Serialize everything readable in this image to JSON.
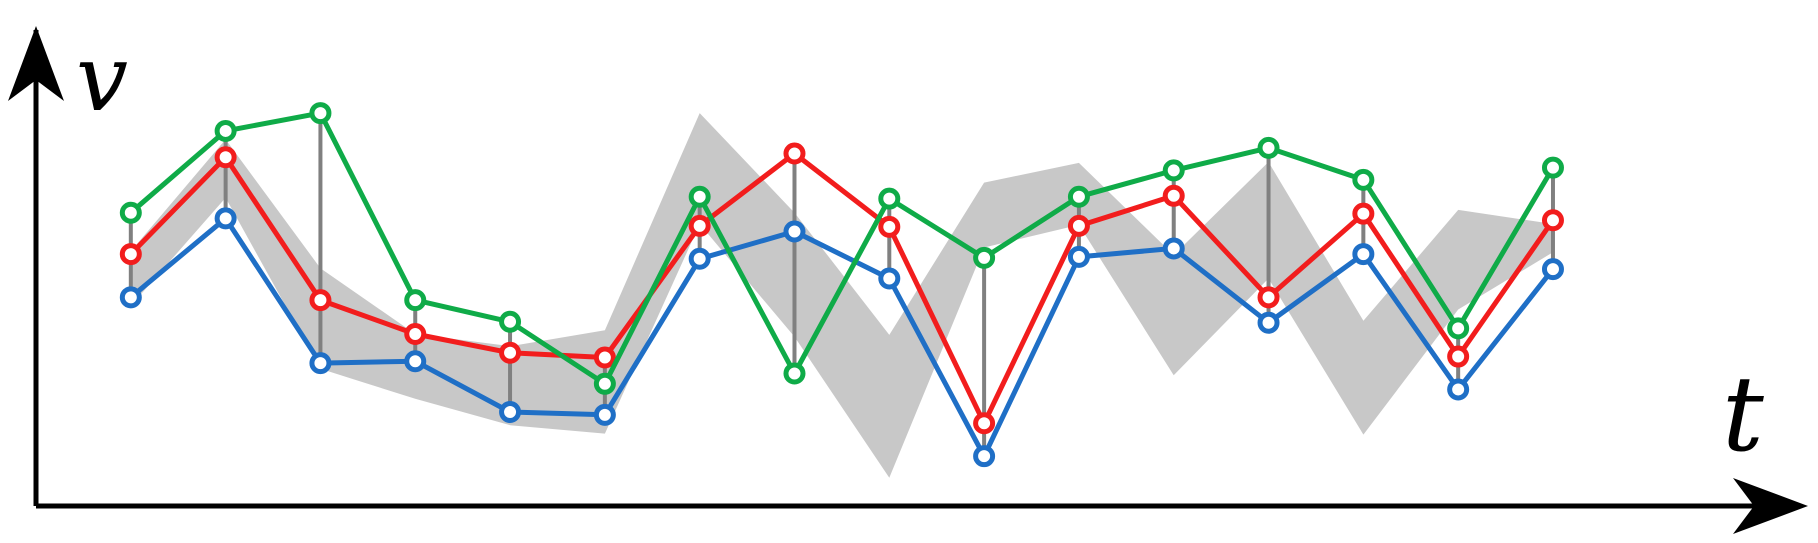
{
  "chart_data": {
    "type": "line",
    "title": "",
    "xlabel": "t",
    "ylabel": "v",
    "grid": false,
    "legend": "none",
    "x": [
      1,
      2,
      3,
      4,
      5,
      6,
      7,
      8,
      9,
      10,
      11,
      12,
      13,
      14,
      15,
      16
    ],
    "xlim": [
      0,
      18.5
    ],
    "ylim": [
      0,
      5
    ],
    "band": {
      "color": "#c8c8c8",
      "upper": [
        2.71,
        3.9,
        2.53,
        1.83,
        1.7,
        1.87,
        4.18,
        3.12,
        1.82,
        3.44,
        3.65,
        2.67,
        3.66,
        1.97,
        3.15,
        3.0
      ],
      "lower": [
        2.13,
        3.28,
        1.46,
        1.14,
        0.86,
        0.77,
        3.0,
        1.8,
        0.3,
        2.75,
        2.99,
        1.39,
        2.42,
        0.76,
        2.09,
        2.7
      ]
    },
    "series": [
      {
        "name": "",
        "color": "#1f6fc6",
        "values": [
          2.22,
          3.06,
          1.52,
          1.54,
          1.0,
          0.97,
          2.63,
          2.92,
          2.42,
          0.53,
          2.65,
          2.74,
          1.95,
          2.68,
          1.24,
          2.52
        ]
      },
      {
        "name": "",
        "color": "#f21d1d",
        "values": [
          2.68,
          3.71,
          2.19,
          1.83,
          1.63,
          1.58,
          2.98,
          3.75,
          2.97,
          0.88,
          2.98,
          3.3,
          2.22,
          3.11,
          1.59,
          3.04
        ]
      },
      {
        "name": "",
        "color": "#0fab48",
        "values": [
          3.12,
          3.99,
          4.18,
          2.19,
          1.96,
          1.3,
          3.29,
          1.41,
          3.27,
          2.64,
          3.29,
          3.57,
          3.81,
          3.47,
          1.89,
          3.6
        ]
      }
    ],
    "series_x": [
      [
        1,
        2,
        3,
        4,
        5,
        6,
        7,
        8,
        9,
        10,
        11,
        12,
        13,
        14,
        15,
        16
      ],
      [
        1,
        2,
        3,
        4,
        5,
        6,
        7,
        8,
        9,
        10,
        11,
        12,
        13,
        14,
        15,
        16
      ],
      [
        1,
        2,
        3,
        4,
        5,
        6,
        7,
        8,
        9,
        10,
        11,
        12,
        13,
        14,
        15,
        16
      ]
    ],
    "connectors": {
      "color": "#808080"
    }
  }
}
